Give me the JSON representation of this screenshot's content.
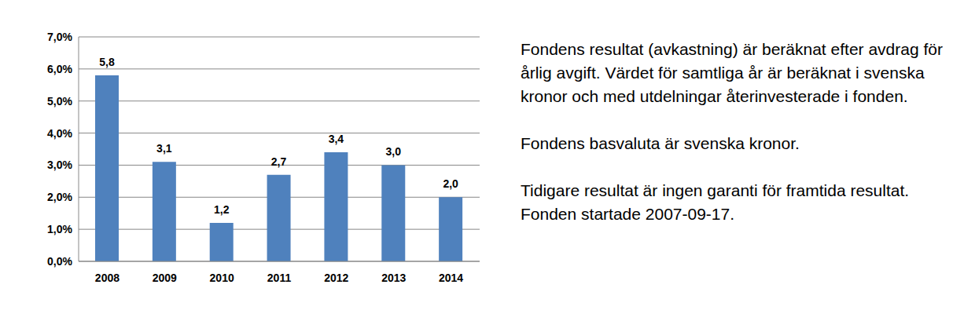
{
  "chart_data": {
    "type": "bar",
    "categories": [
      "2008",
      "2009",
      "2010",
      "2011",
      "2012",
      "2013",
      "2014"
    ],
    "values": [
      5.8,
      3.1,
      1.2,
      2.7,
      3.4,
      3.0,
      2.0
    ],
    "value_labels": [
      "5,8",
      "3,1",
      "1,2",
      "2,7",
      "3,4",
      "3,0",
      "2,0"
    ],
    "color": "#4f81bd",
    "ylim": [
      0,
      7
    ],
    "yticks": [
      {
        "value": 0,
        "label": "0,0%"
      },
      {
        "value": 1,
        "label": "1,0%"
      },
      {
        "value": 2,
        "label": "2,0%"
      },
      {
        "value": 3,
        "label": "3,0%"
      },
      {
        "value": 4,
        "label": "4,0%"
      },
      {
        "value": 5,
        "label": "5,0%"
      },
      {
        "value": 6,
        "label": "6,0%"
      },
      {
        "value": 7,
        "label": "7,0%"
      }
    ],
    "grid": true,
    "data_labels": true,
    "annotations": [
      "Fondens resultat (avkastning) är beräknat efter avdrag för årlig avgift. Värdet för samtliga år är beräknat i svenska kronor och med utdelningar återinvesterade i fonden.",
      "Fondens basvaluta är svenska kronor.",
      "Tidigare resultat är ingen garanti för framtida resultat. Fonden startade 2007-09-17."
    ]
  }
}
